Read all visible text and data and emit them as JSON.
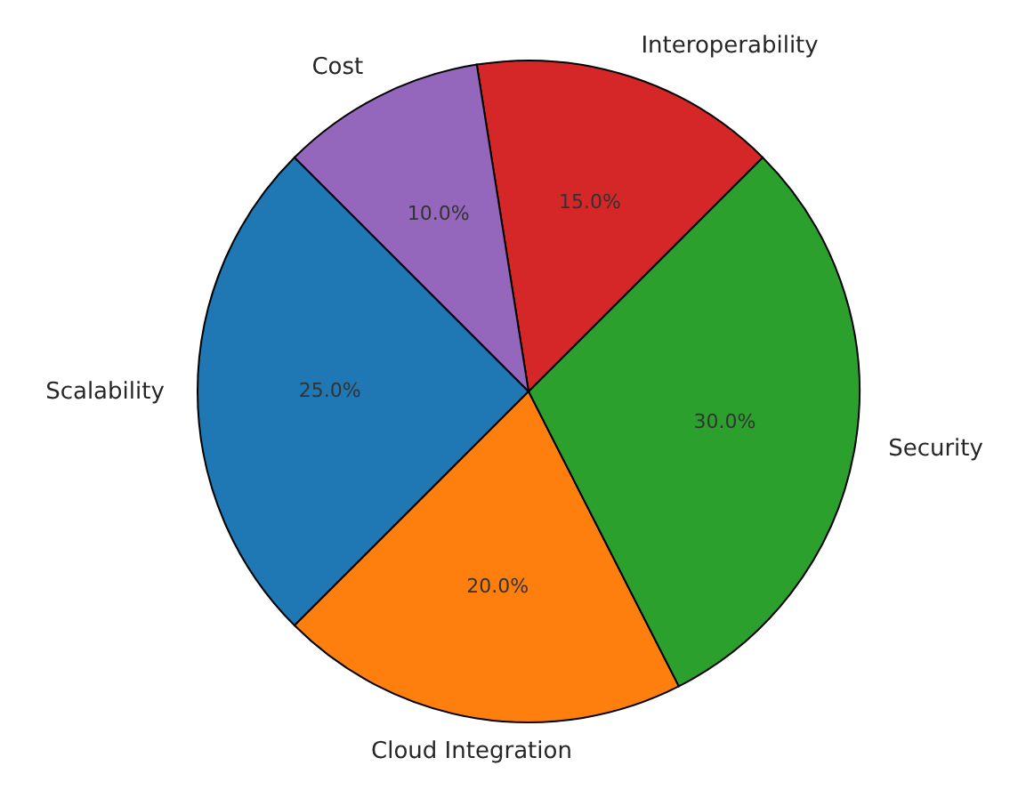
{
  "chart_data": {
    "type": "pie",
    "categories": [
      "Scalability",
      "Cloud Integration",
      "Security",
      "Interoperability",
      "Cost"
    ],
    "values": [
      25,
      20,
      30,
      15,
      10
    ],
    "colors": [
      "#1f77b4",
      "#ff7f0e",
      "#2ca02c",
      "#d62728",
      "#9467bd"
    ],
    "value_labels": [
      "25.0%",
      "20.0%",
      "30.0%",
      "15.0%",
      "10.0%"
    ]
  }
}
